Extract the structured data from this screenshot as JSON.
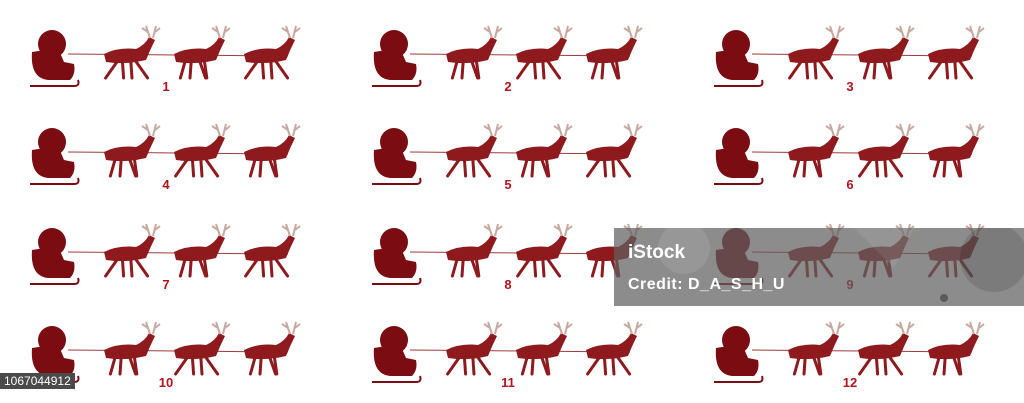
{
  "frames": [
    {
      "label": "1"
    },
    {
      "label": "2"
    },
    {
      "label": "3"
    },
    {
      "label": "4"
    },
    {
      "label": "5"
    },
    {
      "label": "6"
    },
    {
      "label": "7"
    },
    {
      "label": "8"
    },
    {
      "label": "9"
    },
    {
      "label": "10"
    },
    {
      "label": "11"
    },
    {
      "label": "12"
    }
  ],
  "watermark": {
    "logo": "iStock",
    "credit": "Credit: D_A_S_H_U"
  },
  "image_id": "1067044912",
  "colors": {
    "sleigh": "#7a0c12",
    "reindeer": "#8e1a1e",
    "label": "#b0141c"
  }
}
